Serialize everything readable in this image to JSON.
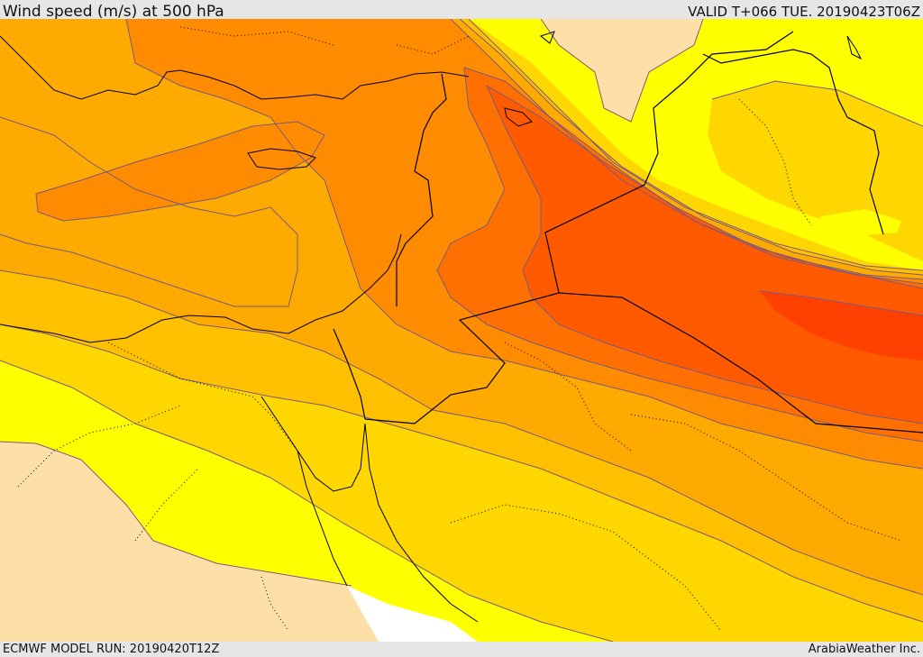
{
  "header": {
    "title": "Wind speed (m/s) at 500 hPa",
    "valid_time": "VALID T+066 TUE. 20190423T06Z"
  },
  "footer": {
    "model_run": "ECMWF MODEL RUN: 20190420T12Z",
    "credit": "ArabiaWeather Inc."
  },
  "map": {
    "variable": "wind speed",
    "units": "m/s",
    "level_hpa": 500,
    "colors": {
      "land_background": "#fde0a8",
      "sea_no_data": "#ffffff",
      "band_1": "#ffff00",
      "band_2": "#ffd700",
      "band_3": "#ffc000",
      "band_4": "#ffaa00",
      "band_5": "#ff8c00",
      "band_6": "#ff7000",
      "band_7": "#ff5a00",
      "band_8": "#ff4000",
      "contour_line": "#7a5a80",
      "border_line": "#000000"
    }
  }
}
